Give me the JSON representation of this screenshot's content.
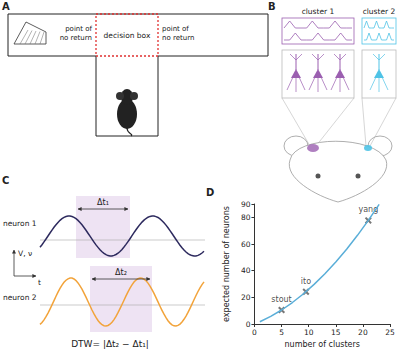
{
  "panels": {
    "A": {
      "letter": "A",
      "decision_box": "decision box",
      "left": [
        "point of",
        "no return"
      ],
      "right": [
        "point of",
        "no return"
      ]
    },
    "B": {
      "letter": "B",
      "clusters": [
        {
          "label": "cluster 1",
          "color": "#9b5fb0"
        },
        {
          "label": "cluster 2",
          "color": "#4fc3e6"
        }
      ]
    },
    "C": {
      "letter": "C",
      "neurons": [
        {
          "label": "neuron 1",
          "color": "#2d2a5e",
          "interval": "Δt₁"
        },
        {
          "label": "neuron 2",
          "color": "#f2a33a",
          "interval": "Δt₂"
        }
      ],
      "y_axis": "V, ν",
      "x_axis": "t",
      "formula": "DTW= |Δt₂ − Δt₁|"
    },
    "D": {
      "letter": "D"
    }
  },
  "chart_data": {
    "type": "line",
    "x_label": "number of clusters",
    "y_label": "expected number of neurons",
    "x": [
      1,
      3,
      5,
      7,
      9,
      11,
      13,
      15,
      17,
      19,
      21,
      23
    ],
    "values": [
      1.7,
      5.7,
      10.5,
      16.1,
      22.5,
      29.7,
      37.7,
      46.5,
      56.1,
      66.5,
      77.7,
      89.7
    ],
    "color": "#5aaed8",
    "xlim": [
      0,
      25
    ],
    "xticks": [
      0,
      5,
      10,
      15,
      20,
      25
    ],
    "ylim": [
      0,
      90
    ],
    "yticks": [
      0,
      20,
      40,
      60,
      80
    ],
    "annotations": [
      {
        "text": "stout",
        "x": 5,
        "y": 10.5
      },
      {
        "text": "ito",
        "x": 9.5,
        "y": 24.2
      },
      {
        "text": "yang",
        "x": 21,
        "y": 77.7
      }
    ],
    "marker": "x",
    "grid": false
  }
}
